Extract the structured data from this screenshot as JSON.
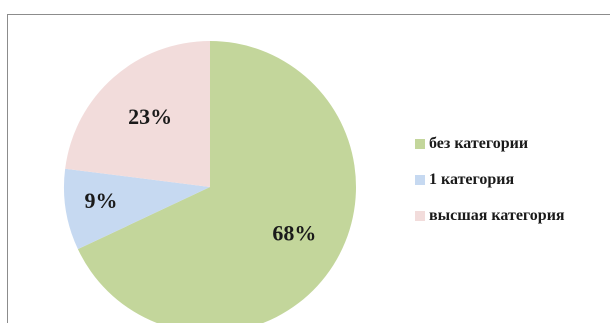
{
  "chart_data": {
    "type": "pie",
    "categories": [
      "без категории",
      "1 категория",
      "высшая категория"
    ],
    "values": [
      68,
      9,
      23
    ],
    "data_labels": [
      "68%",
      "9%",
      "23%"
    ],
    "colors": [
      "#c3d69b",
      "#c6d9f1",
      "#f2dcdb"
    ],
    "start_angle_deg": 0,
    "direction": "clockwise",
    "legend_position": "right"
  },
  "legend": {
    "items": [
      {
        "label": "без категории",
        "color": "#c3d69b"
      },
      {
        "label": "1 категория",
        "color": "#c6d9f1"
      },
      {
        "label": "высшая категория",
        "color": "#f2dcdb"
      }
    ]
  }
}
